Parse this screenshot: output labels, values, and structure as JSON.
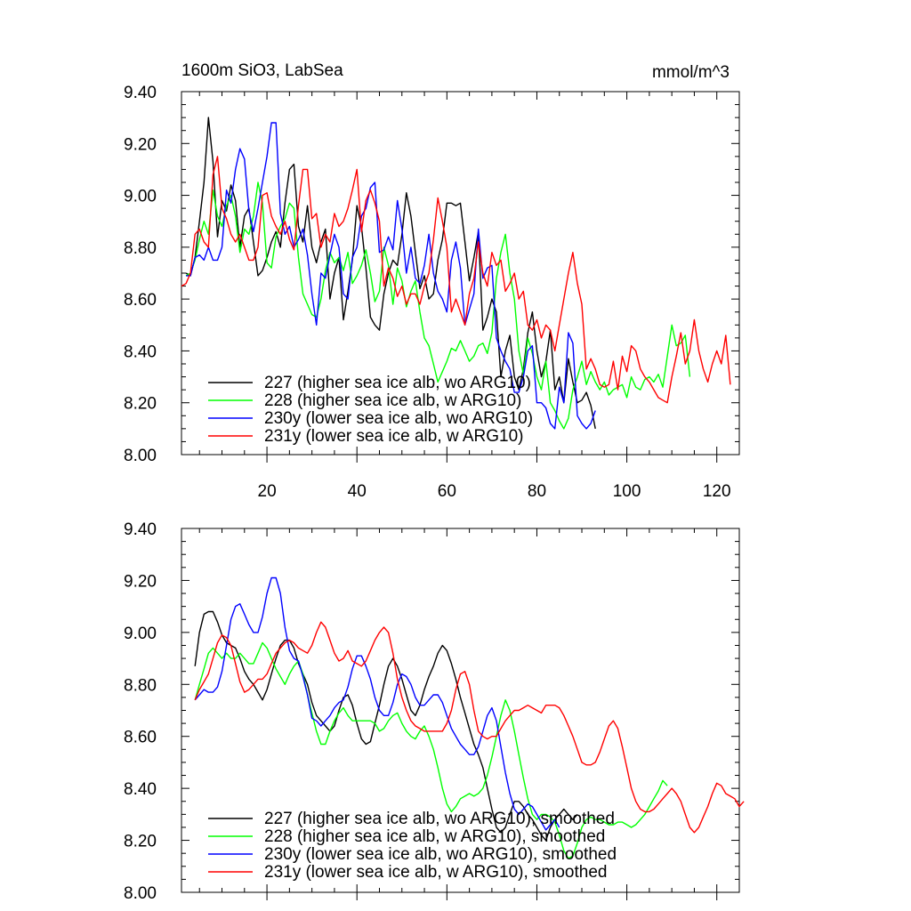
{
  "chart_data": [
    {
      "type": "line",
      "title": "1600m SiO3, LabSea",
      "units": "mmol/m^3",
      "xlim": [
        1,
        125
      ],
      "ylim": [
        8.0,
        9.4
      ],
      "xticks": [
        20,
        40,
        60,
        80,
        100,
        120
      ],
      "yticks": [
        "8.00",
        "8.20",
        "8.40",
        "8.60",
        "8.80",
        "9.00",
        "9.20",
        "9.40"
      ],
      "grid": false,
      "legend_position": "bottom-left",
      "series": [
        {
          "name": "227 (higher sea ice alb, wo ARG10)",
          "color": "#000000",
          "x_start": 2,
          "values": [
            8.7,
            8.69,
            8.76,
            8.9,
            9.05,
            9.3,
            9.13,
            8.84,
            8.98,
            8.94,
            9.04,
            8.98,
            8.8,
            8.92,
            8.95,
            8.82,
            8.69,
            8.71,
            8.76,
            8.82,
            8.86,
            8.8,
            8.97,
            9.1,
            9.12,
            8.88,
            8.82,
            8.96,
            8.8,
            8.74,
            8.82,
            8.87,
            8.6,
            8.7,
            8.76,
            8.52,
            8.63,
            8.75,
            8.96,
            8.88,
            8.72,
            8.53,
            8.5,
            8.48,
            8.62,
            8.7,
            8.75,
            8.73,
            8.85,
            9.01,
            8.92,
            8.78,
            8.64,
            8.69,
            8.6,
            8.62,
            8.75,
            8.83,
            8.97,
            8.97,
            8.96,
            8.97,
            8.82,
            8.67,
            8.76,
            8.86,
            8.48,
            8.53,
            8.6,
            8.55,
            8.3,
            8.4,
            8.46,
            8.3,
            8.25,
            8.33,
            8.47,
            8.55,
            8.4,
            8.3,
            8.36,
            8.48,
            8.25,
            8.3,
            8.2,
            8.37,
            8.28,
            8.2,
            8.21,
            8.24,
            8.19,
            8.1
          ]
        },
        {
          "name": "228 (higher sea ice alb, w ARG10)",
          "color": "#00ff00",
          "x_start": 2,
          "values": [
            8.69,
            8.7,
            8.75,
            8.83,
            8.9,
            8.85,
            9.02,
            8.92,
            8.88,
            8.96,
            9.0,
            8.92,
            8.78,
            8.87,
            8.85,
            8.92,
            9.05,
            8.97,
            8.74,
            8.72,
            8.84,
            8.88,
            8.91,
            8.97,
            8.95,
            8.76,
            8.62,
            8.58,
            8.54,
            8.53,
            8.6,
            8.71,
            8.78,
            8.74,
            8.76,
            8.71,
            8.78,
            8.66,
            8.69,
            8.73,
            8.79,
            8.7,
            8.59,
            8.63,
            8.8,
            8.73,
            8.58,
            8.72,
            8.67,
            8.57,
            8.63,
            8.67,
            8.55,
            8.45,
            8.42,
            8.35,
            8.28,
            8.32,
            8.36,
            8.41,
            8.4,
            8.44,
            8.4,
            8.36,
            8.38,
            8.42,
            8.43,
            8.39,
            8.47,
            8.68,
            8.78,
            8.85,
            8.7,
            8.6,
            8.4,
            8.31,
            8.45,
            8.39,
            8.3,
            8.25,
            8.36,
            8.2,
            8.17,
            8.13,
            8.1,
            8.14,
            8.25,
            8.3,
            8.36,
            8.27,
            8.32,
            8.28,
            8.25,
            8.28,
            8.23,
            8.25,
            8.26,
            8.27,
            8.22,
            8.3,
            8.26,
            8.25,
            8.29,
            8.3,
            8.28,
            8.31,
            8.26,
            8.38,
            8.5,
            8.42,
            8.43,
            8.46,
            8.3
          ]
        },
        {
          "name": "230y (lower sea ice alb, wo ARG10)",
          "color": "#0000ff",
          "x_start": 2,
          "values": [
            8.69,
            8.69,
            8.76,
            8.77,
            8.75,
            8.8,
            8.75,
            8.75,
            8.8,
            9.02,
            8.97,
            9.1,
            9.18,
            9.14,
            8.94,
            8.86,
            8.95,
            9.05,
            9.15,
            9.28,
            9.28,
            8.93,
            8.85,
            8.88,
            8.8,
            8.83,
            8.87,
            8.77,
            8.62,
            8.5,
            8.7,
            8.68,
            8.77,
            8.85,
            8.8,
            8.62,
            8.6,
            8.76,
            8.8,
            8.92,
            8.95,
            9.03,
            9.05,
            8.78,
            8.79,
            8.84,
            8.79,
            8.98,
            8.87,
            8.7,
            8.8,
            8.68,
            8.66,
            8.73,
            8.85,
            8.7,
            8.63,
            8.6,
            8.55,
            8.75,
            8.82,
            8.72,
            8.5,
            8.56,
            8.62,
            8.87,
            8.68,
            8.72,
            8.73,
            8.45,
            8.4,
            8.36,
            8.33,
            8.24,
            8.24,
            8.3,
            8.4,
            8.42,
            8.2,
            8.2,
            8.18,
            8.12,
            8.1,
            8.26,
            8.2,
            8.47,
            8.43,
            8.15,
            8.12,
            8.1,
            8.12,
            8.17
          ]
        },
        {
          "name": "231y (lower sea ice alb, w ARG10)",
          "color": "#ff0000",
          "x_start": 1,
          "values": [
            8.65,
            8.66,
            8.7,
            8.85,
            8.87,
            8.82,
            8.8,
            9.08,
            9.15,
            8.95,
            8.91,
            8.85,
            8.82,
            8.85,
            8.8,
            8.75,
            8.75,
            8.8,
            9.0,
            9.01,
            8.92,
            8.88,
            8.85,
            8.9,
            8.83,
            8.79,
            8.96,
            9.1,
            9.1,
            8.91,
            8.93,
            8.8,
            8.85,
            8.82,
            8.93,
            8.88,
            8.9,
            8.95,
            9.02,
            9.1,
            8.86,
            8.98,
            9.02,
            8.97,
            8.9,
            8.65,
            8.72,
            8.68,
            8.61,
            8.65,
            8.58,
            8.62,
            8.62,
            8.58,
            8.65,
            8.7,
            8.83,
            8.99,
            8.9,
            8.8,
            8.55,
            8.6,
            8.55,
            8.5,
            8.62,
            8.68,
            8.82,
            8.7,
            8.65,
            8.78,
            8.73,
            8.75,
            8.63,
            8.66,
            8.7,
            8.6,
            8.63,
            8.5,
            8.48,
            8.52,
            8.45,
            8.5,
            8.48,
            8.4,
            8.5,
            8.6,
            8.7,
            8.78,
            8.66,
            8.58,
            8.33,
            8.37,
            8.33,
            8.27,
            8.26,
            8.27,
            8.36,
            8.25,
            8.38,
            8.32,
            8.42,
            8.4,
            8.33,
            8.3,
            8.28,
            8.25,
            8.22,
            8.21,
            8.2,
            8.3,
            8.38,
            8.47,
            8.35,
            8.4,
            8.52,
            8.4,
            8.33,
            8.28,
            8.35,
            8.4,
            8.35,
            8.46,
            8.27
          ]
        }
      ]
    },
    {
      "type": "line",
      "xlim": [
        1,
        125
      ],
      "ylim": [
        8.0,
        9.4
      ],
      "yticks": [
        "8.00",
        "8.20",
        "8.40",
        "8.60",
        "8.80",
        "9.00",
        "9.20",
        "9.40"
      ],
      "grid": false,
      "legend_position": "bottom-left",
      "series": [
        {
          "name": "227 (higher sea ice alb, wo ARG10), smoothed",
          "color": "#000000",
          "x_start": 4,
          "values": [
            8.87,
            9.0,
            9.07,
            9.08,
            9.08,
            9.04,
            8.99,
            8.96,
            8.95,
            8.94,
            8.9,
            8.85,
            8.82,
            8.8,
            8.77,
            8.74,
            8.78,
            8.84,
            8.9,
            8.95,
            8.97,
            8.97,
            8.94,
            8.88,
            8.84,
            8.8,
            8.73,
            8.68,
            8.66,
            8.64,
            8.62,
            8.64,
            8.7,
            8.75,
            8.76,
            8.72,
            8.65,
            8.59,
            8.57,
            8.58,
            8.65,
            8.72,
            8.8,
            8.87,
            8.9,
            8.87,
            8.82,
            8.76,
            8.7,
            8.68,
            8.72,
            8.78,
            8.83,
            8.87,
            8.92,
            8.95,
            8.93,
            8.88,
            8.82,
            8.75,
            8.69,
            8.63,
            8.57,
            8.53,
            8.48,
            8.4,
            8.32,
            8.25,
            8.23,
            8.25,
            8.3,
            8.35,
            8.35,
            8.33,
            8.3,
            8.28,
            8.25,
            8.22,
            8.2,
            8.25,
            8.28,
            8.3,
            8.32,
            8.3,
            8.28,
            8.3
          ]
        },
        {
          "name": "228 (higher sea ice alb, w ARG10), smoothed",
          "color": "#00ff00",
          "x_start": 4,
          "values": [
            8.74,
            8.8,
            8.86,
            8.92,
            8.94,
            8.92,
            8.9,
            8.92,
            8.9,
            8.9,
            8.92,
            8.9,
            8.88,
            8.88,
            8.92,
            8.96,
            8.94,
            8.9,
            8.86,
            8.83,
            8.8,
            8.84,
            8.87,
            8.89,
            8.84,
            8.76,
            8.69,
            8.62,
            8.57,
            8.57,
            8.62,
            8.66,
            8.69,
            8.71,
            8.68,
            8.66,
            8.66,
            8.66,
            8.66,
            8.66,
            8.65,
            8.62,
            8.63,
            8.66,
            8.68,
            8.69,
            8.65,
            8.62,
            8.6,
            8.59,
            8.62,
            8.64,
            8.6,
            8.55,
            8.48,
            8.4,
            8.34,
            8.31,
            8.33,
            8.36,
            8.37,
            8.38,
            8.37,
            8.38,
            8.4,
            8.45,
            8.52,
            8.6,
            8.68,
            8.74,
            8.7,
            8.62,
            8.53,
            8.44,
            8.36,
            8.3,
            8.28,
            8.3,
            8.3,
            8.29,
            8.27,
            8.22,
            8.16,
            8.13,
            8.14,
            8.19,
            8.25,
            8.28,
            8.29,
            8.28,
            8.28,
            8.27,
            8.26,
            8.26,
            8.27,
            8.27,
            8.26,
            8.25,
            8.26,
            8.28,
            8.3,
            8.33,
            8.36,
            8.39,
            8.43,
            8.41
          ]
        },
        {
          "name": "230y (lower sea ice alb, wo ARG10), smoothed",
          "color": "#0000ff",
          "x_start": 4,
          "values": [
            8.74,
            8.76,
            8.78,
            8.77,
            8.77,
            8.79,
            8.85,
            8.95,
            9.05,
            9.1,
            9.11,
            9.07,
            9.03,
            9.0,
            9.0,
            9.06,
            9.15,
            9.21,
            9.21,
            9.15,
            9.02,
            8.93,
            8.9,
            8.89,
            8.83,
            8.76,
            8.67,
            8.66,
            8.64,
            8.66,
            8.68,
            8.71,
            8.73,
            8.74,
            8.79,
            8.86,
            8.91,
            8.91,
            8.87,
            8.82,
            8.75,
            8.7,
            8.68,
            8.68,
            8.73,
            8.8,
            8.84,
            8.83,
            8.8,
            8.75,
            8.72,
            8.72,
            8.74,
            8.76,
            8.76,
            8.73,
            8.68,
            8.63,
            8.6,
            8.57,
            8.55,
            8.53,
            8.53,
            8.56,
            8.62,
            8.68,
            8.71,
            8.66,
            8.56,
            8.46,
            8.38,
            8.32,
            8.3,
            8.32,
            8.34,
            8.33,
            8.3,
            8.27,
            8.24,
            8.26,
            8.28,
            8.25
          ]
        },
        {
          "name": "231y (lower sea ice alb, w ARG10), smoothed",
          "color": "#ff0000",
          "x_start": 4,
          "values": [
            8.74,
            8.78,
            8.81,
            8.84,
            8.9,
            8.96,
            8.99,
            8.98,
            8.95,
            8.88,
            8.81,
            8.77,
            8.78,
            8.8,
            8.82,
            8.82,
            8.84,
            8.88,
            8.92,
            8.94,
            8.96,
            8.97,
            8.96,
            8.94,
            8.93,
            8.92,
            8.95,
            9.0,
            9.04,
            9.02,
            8.97,
            8.92,
            8.89,
            8.9,
            8.93,
            8.89,
            8.88,
            8.87,
            8.89,
            8.93,
            8.97,
            9.0,
            9.02,
            9.0,
            8.92,
            8.82,
            8.75,
            8.7,
            8.66,
            8.64,
            8.63,
            8.62,
            8.62,
            8.62,
            8.62,
            8.62,
            8.65,
            8.7,
            8.78,
            8.84,
            8.85,
            8.8,
            8.7,
            8.62,
            8.6,
            8.59,
            8.6,
            8.6,
            8.63,
            8.66,
            8.68,
            8.7,
            8.7,
            8.71,
            8.72,
            8.71,
            8.7,
            8.69,
            8.72,
            8.72,
            8.72,
            8.71,
            8.68,
            8.64,
            8.6,
            8.55,
            8.5,
            8.49,
            8.49,
            8.5,
            8.54,
            8.59,
            8.64,
            8.66,
            8.63,
            8.56,
            8.48,
            8.4,
            8.35,
            8.32,
            8.31,
            8.31,
            8.32,
            8.34,
            8.36,
            8.38,
            8.4,
            8.38,
            8.35,
            8.3,
            8.25,
            8.23,
            8.25,
            8.29,
            8.33,
            8.38,
            8.42,
            8.41,
            8.38,
            8.37,
            8.36,
            8.33,
            8.35
          ]
        }
      ]
    }
  ]
}
